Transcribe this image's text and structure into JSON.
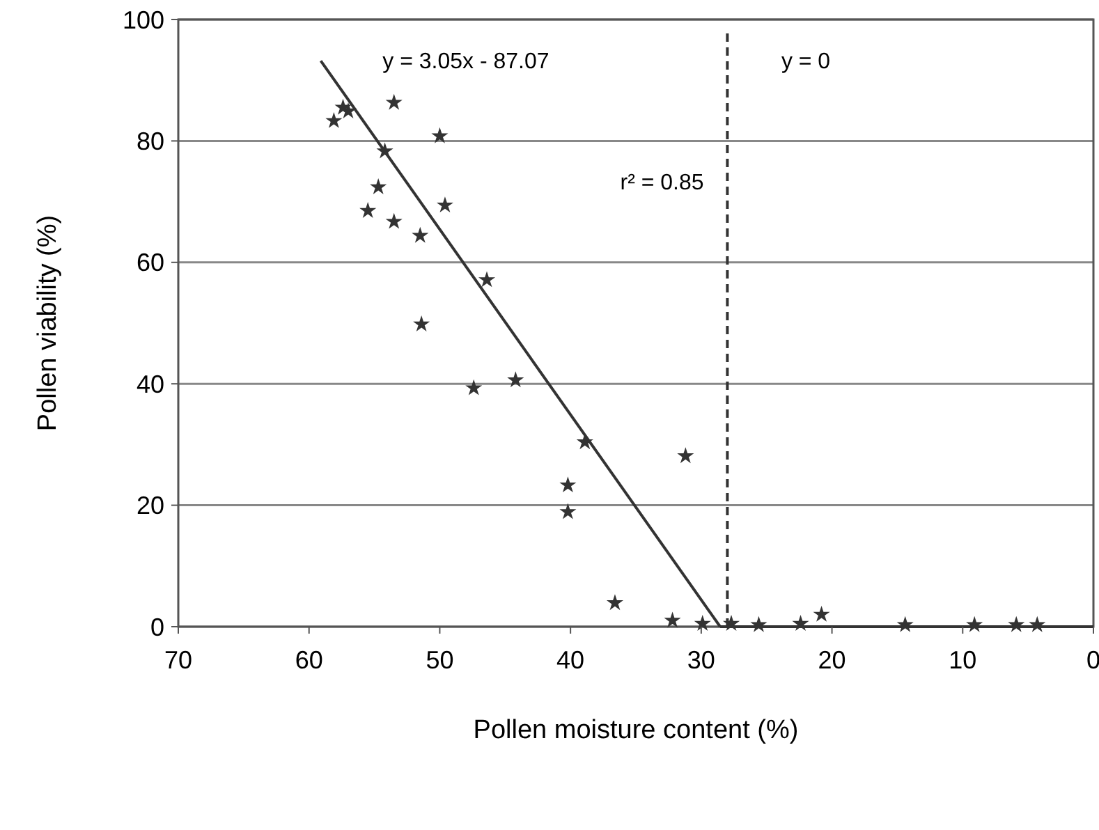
{
  "chart_data": {
    "type": "scatter",
    "xlabel": "Pollen moisture content (%)",
    "ylabel": "Pollen viability (%)",
    "xlim": [
      70,
      0
    ],
    "xticks": [
      70,
      60,
      50,
      40,
      30,
      20,
      10,
      0
    ],
    "ylim": [
      0,
      100
    ],
    "yticks": [
      0,
      20,
      40,
      60,
      80,
      100
    ],
    "grid": "y",
    "series": [
      {
        "marker": "star",
        "color": "#333333",
        "x": [
          58.1,
          57.0,
          57.4,
          53.5,
          50.0,
          54.2,
          54.7,
          55.5,
          53.5,
          49.6,
          51.5,
          46.4,
          51.4,
          47.4,
          44.2,
          38.9,
          31.2,
          40.2,
          40.2,
          36.6,
          32.2,
          29.9,
          27.7,
          25.6,
          22.4,
          20.8,
          14.4,
          9.1,
          5.9,
          4.3
        ],
        "values": [
          83.3,
          84.9,
          85.5,
          86.3,
          80.8,
          78.3,
          72.4,
          68.5,
          66.7,
          69.4,
          64.4,
          57.1,
          49.8,
          39.3,
          40.6,
          30.4,
          28.1,
          23.3,
          18.9,
          3.9,
          1,
          0.5,
          0.5,
          0.3,
          0.5,
          2,
          0.3,
          0.3,
          0.3,
          0.3
        ]
      },
      {
        "type": "line",
        "color": "#333333",
        "x": [
          59.1,
          28.55
        ],
        "values": [
          93.2,
          0
        ]
      },
      {
        "type": "line",
        "color": "#333333",
        "x": [
          28.55,
          0
        ],
        "values": [
          0,
          0
        ]
      }
    ],
    "ref_lines": [
      {
        "axis": "x",
        "value": 28,
        "color": "#333333",
        "line_style": "dashed"
      }
    ],
    "annotations": [
      "y = 3.05x - 87.07",
      "y = 0",
      "r² = 0.85"
    ]
  }
}
